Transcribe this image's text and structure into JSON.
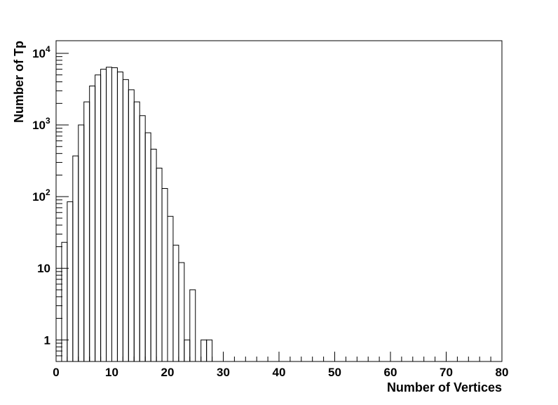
{
  "chart_data": {
    "type": "histogram",
    "xlabel": "Number of Vertices",
    "ylabel": "Number of Tp",
    "xlim": [
      0,
      80
    ],
    "ylim": [
      0.5,
      15000
    ],
    "y_scale": "log",
    "grid": false,
    "legend": "none",
    "bin_width": 1,
    "x_ticks": [
      0,
      10,
      20,
      30,
      40,
      50,
      60,
      70,
      80
    ],
    "y_ticks": [
      {
        "value": 1,
        "base": "1",
        "exp": ""
      },
      {
        "value": 10,
        "base": "10",
        "exp": ""
      },
      {
        "value": 100,
        "base": "10",
        "exp": "2"
      },
      {
        "value": 1000,
        "base": "10",
        "exp": "3"
      },
      {
        "value": 10000,
        "base": "10",
        "exp": "4"
      }
    ],
    "bin_edges_start": 1,
    "values": [
      23,
      85,
      370,
      1000,
      2100,
      3500,
      5000,
      6000,
      6400,
      6300,
      5500,
      4300,
      3100,
      2100,
      1350,
      780,
      460,
      250,
      130,
      53,
      21,
      12,
      1,
      5,
      0,
      1,
      1
    ]
  }
}
